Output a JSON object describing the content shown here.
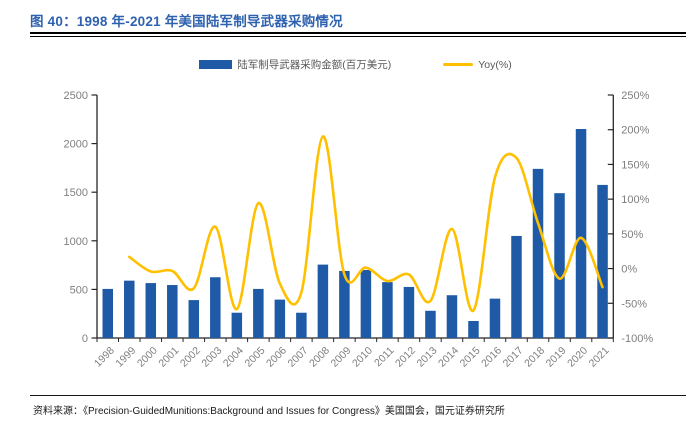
{
  "title": {
    "text": "图 40：1998 年-2021 年美国陆军制导武器采购情况"
  },
  "legend": {
    "bar_label": "陆军制导武器采购金额(百万美元)",
    "line_label": "Yoy(%)"
  },
  "footer": {
    "source": "资料来源：《Precision-GuidedMunitions:Background and Issues for Congress》美国国会，国元证券研究所"
  },
  "colors": {
    "title": "#2F62AE",
    "bar": "#1E5AA5",
    "line": "#FFC000",
    "axis_line": "#262626",
    "axis_text": "#7F7F7F",
    "legend_text": "#595959",
    "footer_text": "#1A1A1A"
  },
  "chart_data": {
    "type": "bar+line",
    "title": "1998年-2021年美国陆军制导武器采购情况",
    "categories": [
      "1998",
      "1999",
      "2000",
      "2001",
      "2002",
      "2003",
      "2004",
      "2005",
      "2006",
      "2007",
      "2008",
      "2009",
      "2010",
      "2011",
      "2012",
      "2013",
      "2014",
      "2015",
      "2016",
      "2017",
      "2018",
      "2019",
      "2020",
      "2021"
    ],
    "series": [
      {
        "name": "陆军制导武器采购金额(百万美元)",
        "type": "bar",
        "axis": "left",
        "values": [
          505,
          590,
          565,
          545,
          390,
          625,
          260,
          505,
          395,
          260,
          755,
          690,
          700,
          575,
          525,
          280,
          440,
          175,
          405,
          1050,
          1740,
          1490,
          2150,
          1575
        ]
      },
      {
        "name": "Yoy(%)",
        "type": "line",
        "smooth": true,
        "axis": "right",
        "values": [
          null,
          16.8,
          -4.2,
          -3.5,
          -28.4,
          60.3,
          -58.4,
          94.2,
          -21.8,
          -34.2,
          190.4,
          -8.6,
          1.4,
          -17.9,
          -8.7,
          -46.7,
          57.1,
          -60.2,
          131.4,
          159.3,
          65.7,
          -14.4,
          44.3,
          -26.7
        ]
      }
    ],
    "left_axis": {
      "min": 0,
      "max": 2500,
      "step": 500,
      "tick_labels": [
        "0",
        "500",
        "1000",
        "1500",
        "2000",
        "2500"
      ]
    },
    "right_axis": {
      "min": -100,
      "max": 250,
      "step": 50,
      "tick_labels": [
        "-100%",
        "-50%",
        "0%",
        "50%",
        "100%",
        "150%",
        "200%",
        "250%"
      ]
    },
    "grid": false,
    "legend_position": "top",
    "x_label_rotation": -45
  }
}
